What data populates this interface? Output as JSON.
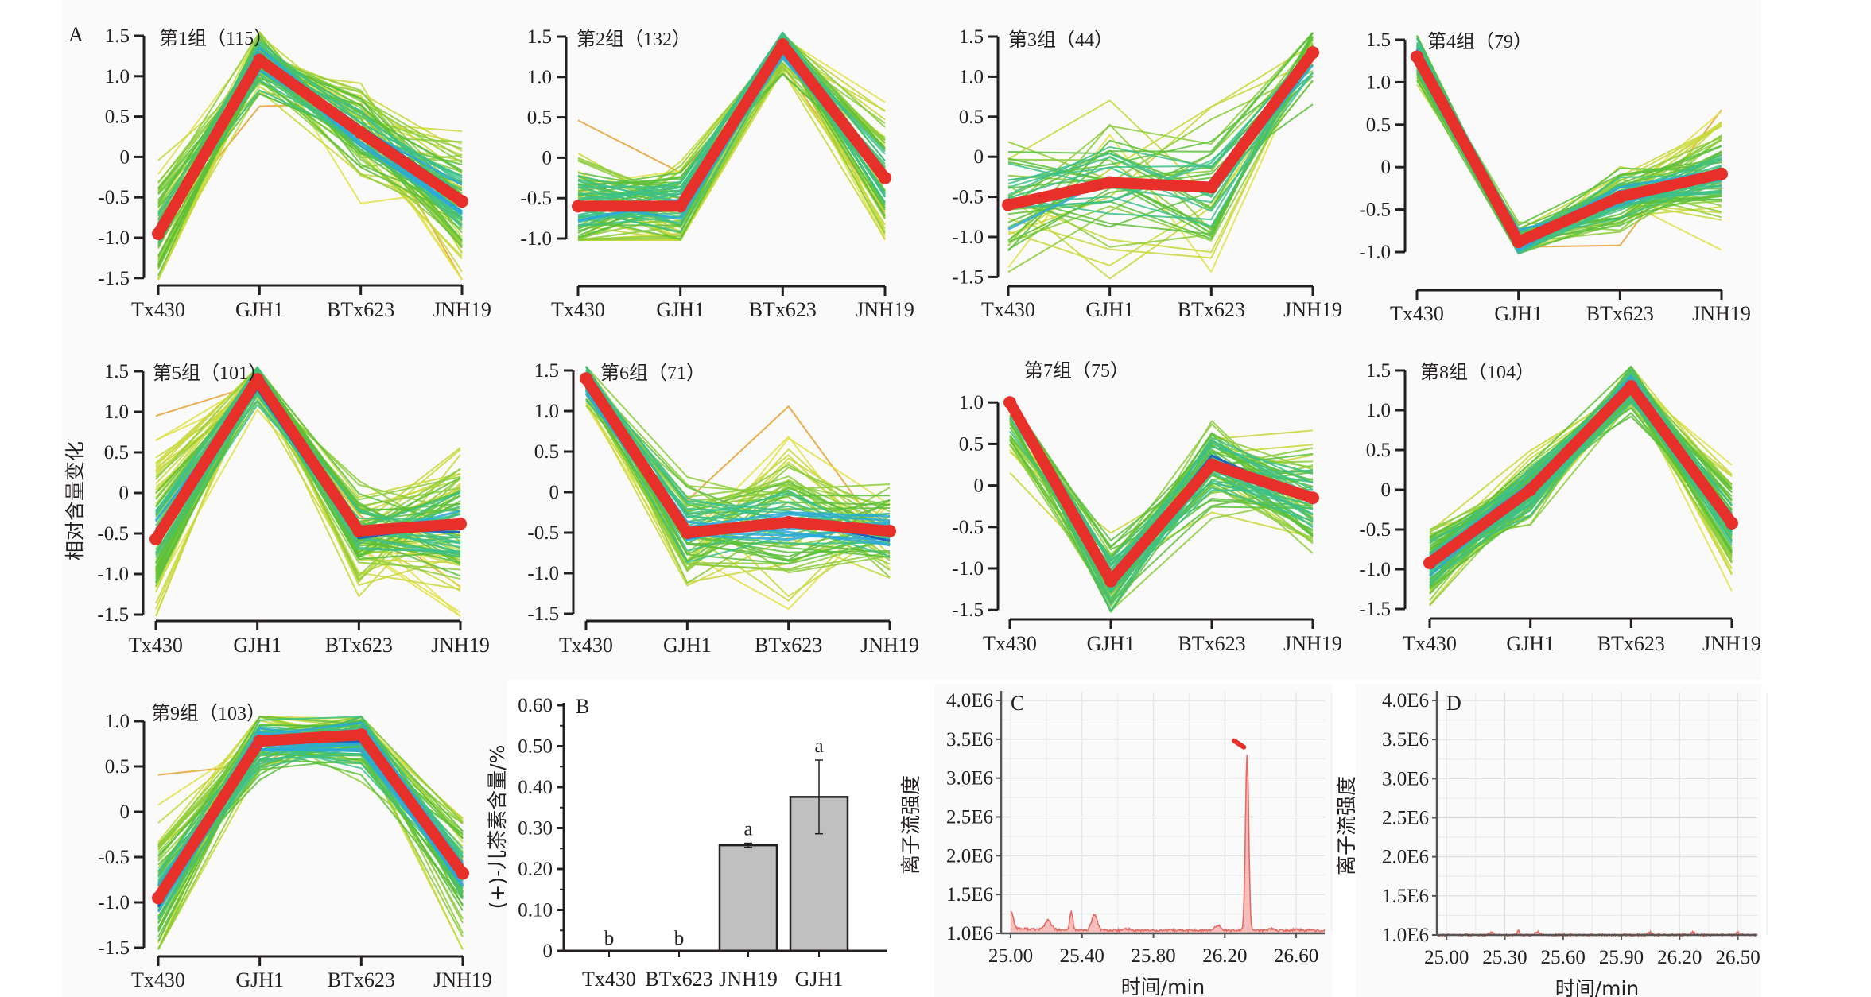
{
  "figure": {
    "panel_letters": [
      "A",
      "B",
      "C",
      "D"
    ],
    "profile_ylabel": "相对含量变化",
    "colors": {
      "centroid": "#e8302a",
      "member_palette": [
        "#1f5fc0",
        "#2aa9d8",
        "#3cbf8a",
        "#5cbf3a",
        "#8ccc3a",
        "#c8d83a",
        "#e2e24a",
        "#e8a030"
      ],
      "bar_fill": "#c0c0c0",
      "trace_fill": "#f2b3b0",
      "trace_line": "#e36b63",
      "peak_marker": "#e8302a"
    }
  },
  "chart_data": [
    {
      "type": "line",
      "panel": "A",
      "title": "第1组（115）",
      "members": 115,
      "categories": [
        "Tx430",
        "GJH1",
        "BTx623",
        "JNH19"
      ],
      "yticks": [
        "1.5",
        "1.0",
        "0.5",
        "0",
        "-0.5",
        "-1.0",
        "-1.5"
      ],
      "ylim": [
        -1.5,
        1.5
      ],
      "series": [
        {
          "name": "centroid",
          "values": [
            -0.95,
            1.2,
            0.3,
            -0.55
          ]
        }
      ],
      "member_spread": [
        0.35,
        0.2,
        0.25,
        0.4
      ]
    },
    {
      "type": "line",
      "panel": "A",
      "title": "第2组（132）",
      "members": 132,
      "categories": [
        "Tx430",
        "GJH1",
        "BTx623",
        "JNH19"
      ],
      "yticks": [
        "1.5",
        "1.0",
        "0.5",
        "0",
        "-0.5",
        "-1.0"
      ],
      "ylim": [
        -1.0,
        1.5
      ],
      "series": [
        {
          "name": "centroid",
          "values": [
            -0.6,
            -0.6,
            1.4,
            -0.25
          ]
        }
      ],
      "member_spread": [
        0.35,
        0.25,
        0.15,
        0.4
      ]
    },
    {
      "type": "line",
      "panel": "A",
      "title": "第3组（44）",
      "members": 44,
      "categories": [
        "Tx430",
        "GJH1",
        "BTx623",
        "JNH19"
      ],
      "yticks": [
        "1.5",
        "1.0",
        "0.5",
        "0",
        "-0.5",
        "-1.0",
        "-1.5"
      ],
      "ylim": [
        -1.5,
        1.5
      ],
      "series": [
        {
          "name": "centroid",
          "values": [
            -0.6,
            -0.32,
            -0.38,
            1.3
          ]
        }
      ],
      "member_spread": [
        0.5,
        0.5,
        0.45,
        0.2
      ]
    },
    {
      "type": "line",
      "panel": "A",
      "title": "第4组（79）",
      "members": 79,
      "categories": [
        "Tx430",
        "GJH1",
        "BTx623",
        "JNH19"
      ],
      "yticks": [
        "1.5",
        "1.0",
        "0.5",
        "0",
        "-0.5",
        "-1.0"
      ],
      "ylim": [
        -1.0,
        1.5
      ],
      "series": [
        {
          "name": "centroid",
          "values": [
            1.3,
            -0.88,
            -0.35,
            -0.08
          ]
        }
      ],
      "member_spread": [
        0.15,
        0.12,
        0.2,
        0.35
      ]
    },
    {
      "type": "line",
      "panel": "A",
      "title": "第5组（101）",
      "members": 101,
      "categories": [
        "Tx430",
        "GJH1",
        "BTx623",
        "JNH19"
      ],
      "yticks": [
        "1.5",
        "1.0",
        "0.5",
        "0",
        "-0.5",
        "-1.0",
        "-1.5"
      ],
      "ylim": [
        -1.5,
        1.5
      ],
      "series": [
        {
          "name": "centroid",
          "values": [
            -0.57,
            1.4,
            -0.47,
            -0.38
          ]
        }
      ],
      "member_spread": [
        0.45,
        0.15,
        0.3,
        0.45
      ]
    },
    {
      "type": "line",
      "panel": "A",
      "title": "第6组（71）",
      "members": 71,
      "categories": [
        "Tx430",
        "GJH1",
        "BTx623",
        "JNH19"
      ],
      "yticks": [
        "1.5",
        "1.0",
        "0.5",
        "0",
        "-0.5",
        "-1.0",
        "-1.5"
      ],
      "ylim": [
        -1.5,
        1.5
      ],
      "series": [
        {
          "name": "centroid",
          "values": [
            1.4,
            -0.5,
            -0.37,
            -0.48
          ]
        }
      ],
      "member_spread": [
        0.15,
        0.35,
        0.45,
        0.3
      ]
    },
    {
      "type": "line",
      "panel": "A",
      "title": "第7组（75）",
      "members": 75,
      "categories": [
        "Tx430",
        "GJH1",
        "BTx623",
        "JNH19"
      ],
      "yticks": [
        "1.0",
        "0.5",
        "0",
        "-0.5",
        "-1.0",
        "-1.5"
      ],
      "ylim": [
        -1.5,
        1.0
      ],
      "series": [
        {
          "name": "centroid",
          "values": [
            1.0,
            -1.15,
            0.25,
            -0.15
          ]
        }
      ],
      "member_spread": [
        0.3,
        0.25,
        0.3,
        0.35
      ]
    },
    {
      "type": "line",
      "panel": "A",
      "title": "第8组（104）",
      "members": 104,
      "categories": [
        "Tx430",
        "GJH1",
        "BTx623",
        "JNH19"
      ],
      "yticks": [
        "1.5",
        "1.0",
        "0.5",
        "0",
        "-0.5",
        "-1.0",
        "-1.5"
      ],
      "ylim": [
        -1.5,
        1.5
      ],
      "series": [
        {
          "name": "centroid",
          "values": [
            -0.92,
            0.0,
            1.3,
            -0.42
          ]
        }
      ],
      "member_spread": [
        0.25,
        0.2,
        0.15,
        0.35
      ]
    },
    {
      "type": "line",
      "panel": "A",
      "title": "第9组（103）",
      "members": 103,
      "categories": [
        "Tx430",
        "GJH1",
        "BTx623",
        "JNH19"
      ],
      "yticks": [
        "1.0",
        "0.5",
        "0",
        "-0.5",
        "-1.0",
        "-1.5"
      ],
      "ylim": [
        -1.5,
        1.0
      ],
      "series": [
        {
          "name": "centroid",
          "values": [
            -0.95,
            0.78,
            0.85,
            -0.68
          ]
        }
      ],
      "member_spread": [
        0.4,
        0.18,
        0.18,
        0.35
      ]
    },
    {
      "type": "bar",
      "panel": "B",
      "categories": [
        "Tx430",
        "BTx623",
        "JNH19",
        "GJH1"
      ],
      "values": [
        0,
        0,
        0.258,
        0.376
      ],
      "errors": [
        0,
        0,
        0.005,
        0.09
      ],
      "significance": [
        "b",
        "b",
        "a",
        "a"
      ],
      "ylabel": "(+)-儿茶素含量/%",
      "yticks": [
        "0",
        "0.10",
        "0.20",
        "0.30",
        "0.40",
        "0.50",
        "0.60"
      ],
      "ylim": [
        0,
        0.6
      ]
    },
    {
      "type": "area",
      "panel": "C",
      "xlabel": "时间/min",
      "ylabel": "离子流强度",
      "xticks": [
        "25.00",
        "25.40",
        "25.80",
        "26.20",
        "26.60"
      ],
      "xlim": [
        25.0,
        26.76
      ],
      "yticks": [
        "4.0E6",
        "3.5E6",
        "3.0E6",
        "2.5E6",
        "2.0E6",
        "1.5E6",
        "1.0E6"
      ],
      "ylim": [
        1000000.0,
        4000000.0
      ],
      "baseline": 1040000.0,
      "peaks": [
        {
          "x": 25.0,
          "y": 1270000.0,
          "width": 0.02
        },
        {
          "x": 25.21,
          "y": 1160000.0,
          "width": 0.025
        },
        {
          "x": 25.34,
          "y": 1280000.0,
          "width": 0.012
        },
        {
          "x": 25.47,
          "y": 1240000.0,
          "width": 0.022
        },
        {
          "x": 25.65,
          "y": 1060000.0,
          "width": 0.02
        },
        {
          "x": 26.16,
          "y": 1110000.0,
          "width": 0.018
        },
        {
          "x": 26.325,
          "y": 3300000.0,
          "width": 0.013
        },
        {
          "x": 26.46,
          "y": 1060000.0,
          "width": 0.02
        },
        {
          "x": 26.6,
          "y": 1050000.0,
          "width": 0.02
        }
      ],
      "marker": {
        "x": 26.28,
        "y": 3440000.0
      }
    },
    {
      "type": "area",
      "panel": "D",
      "xlabel": "时间/min",
      "ylabel": "离子流强度",
      "xticks": [
        "25.00",
        "25.30",
        "25.60",
        "25.90",
        "26.20",
        "26.50"
      ],
      "xlim": [
        24.95,
        26.6
      ],
      "yticks": [
        "4.0E6",
        "3.5E6",
        "3.0E6",
        "2.5E6",
        "2.0E6",
        "1.5E6",
        "1.0E6"
      ],
      "ylim": [
        1000000.0,
        4000000.0
      ],
      "baseline": 1000000.0,
      "peaks": [
        {
          "x": 25.23,
          "y": 1030000.0,
          "width": 0.02
        },
        {
          "x": 25.37,
          "y": 1070000.0,
          "width": 0.008
        },
        {
          "x": 25.47,
          "y": 1040000.0,
          "width": 0.015
        },
        {
          "x": 26.05,
          "y": 1030000.0,
          "width": 0.015
        },
        {
          "x": 26.27,
          "y": 1040000.0,
          "width": 0.012
        },
        {
          "x": 26.5,
          "y": 1030000.0,
          "width": 0.01
        }
      ]
    }
  ]
}
